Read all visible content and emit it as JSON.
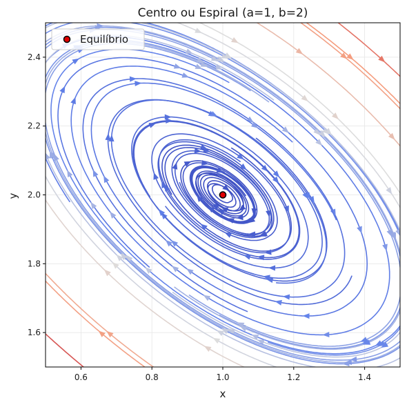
{
  "chart_data": {
    "type": "streamplot",
    "title": "Centro ou Espiral (a=1, b=2)",
    "xlabel": "x",
    "ylabel": "y",
    "xlim": [
      0.5,
      1.5
    ],
    "ylim": [
      1.5,
      2.5
    ],
    "xticks": [
      0.6,
      0.8,
      1.0,
      1.2,
      1.4
    ],
    "yticks": [
      1.6,
      1.8,
      2.0,
      2.2,
      2.4
    ],
    "grid": true,
    "legend": {
      "position": "top-left",
      "entries": [
        {
          "label": "Equilíbrio",
          "marker": "circle",
          "color": "#e00000",
          "edge": "#000000"
        }
      ]
    },
    "equilibrium": {
      "x": 1.0,
      "y": 2.0
    },
    "colormap": {
      "name": "coolwarm",
      "low": "#3b4cc0",
      "mid": "#dddddd",
      "high": "#b40426"
    }
  }
}
